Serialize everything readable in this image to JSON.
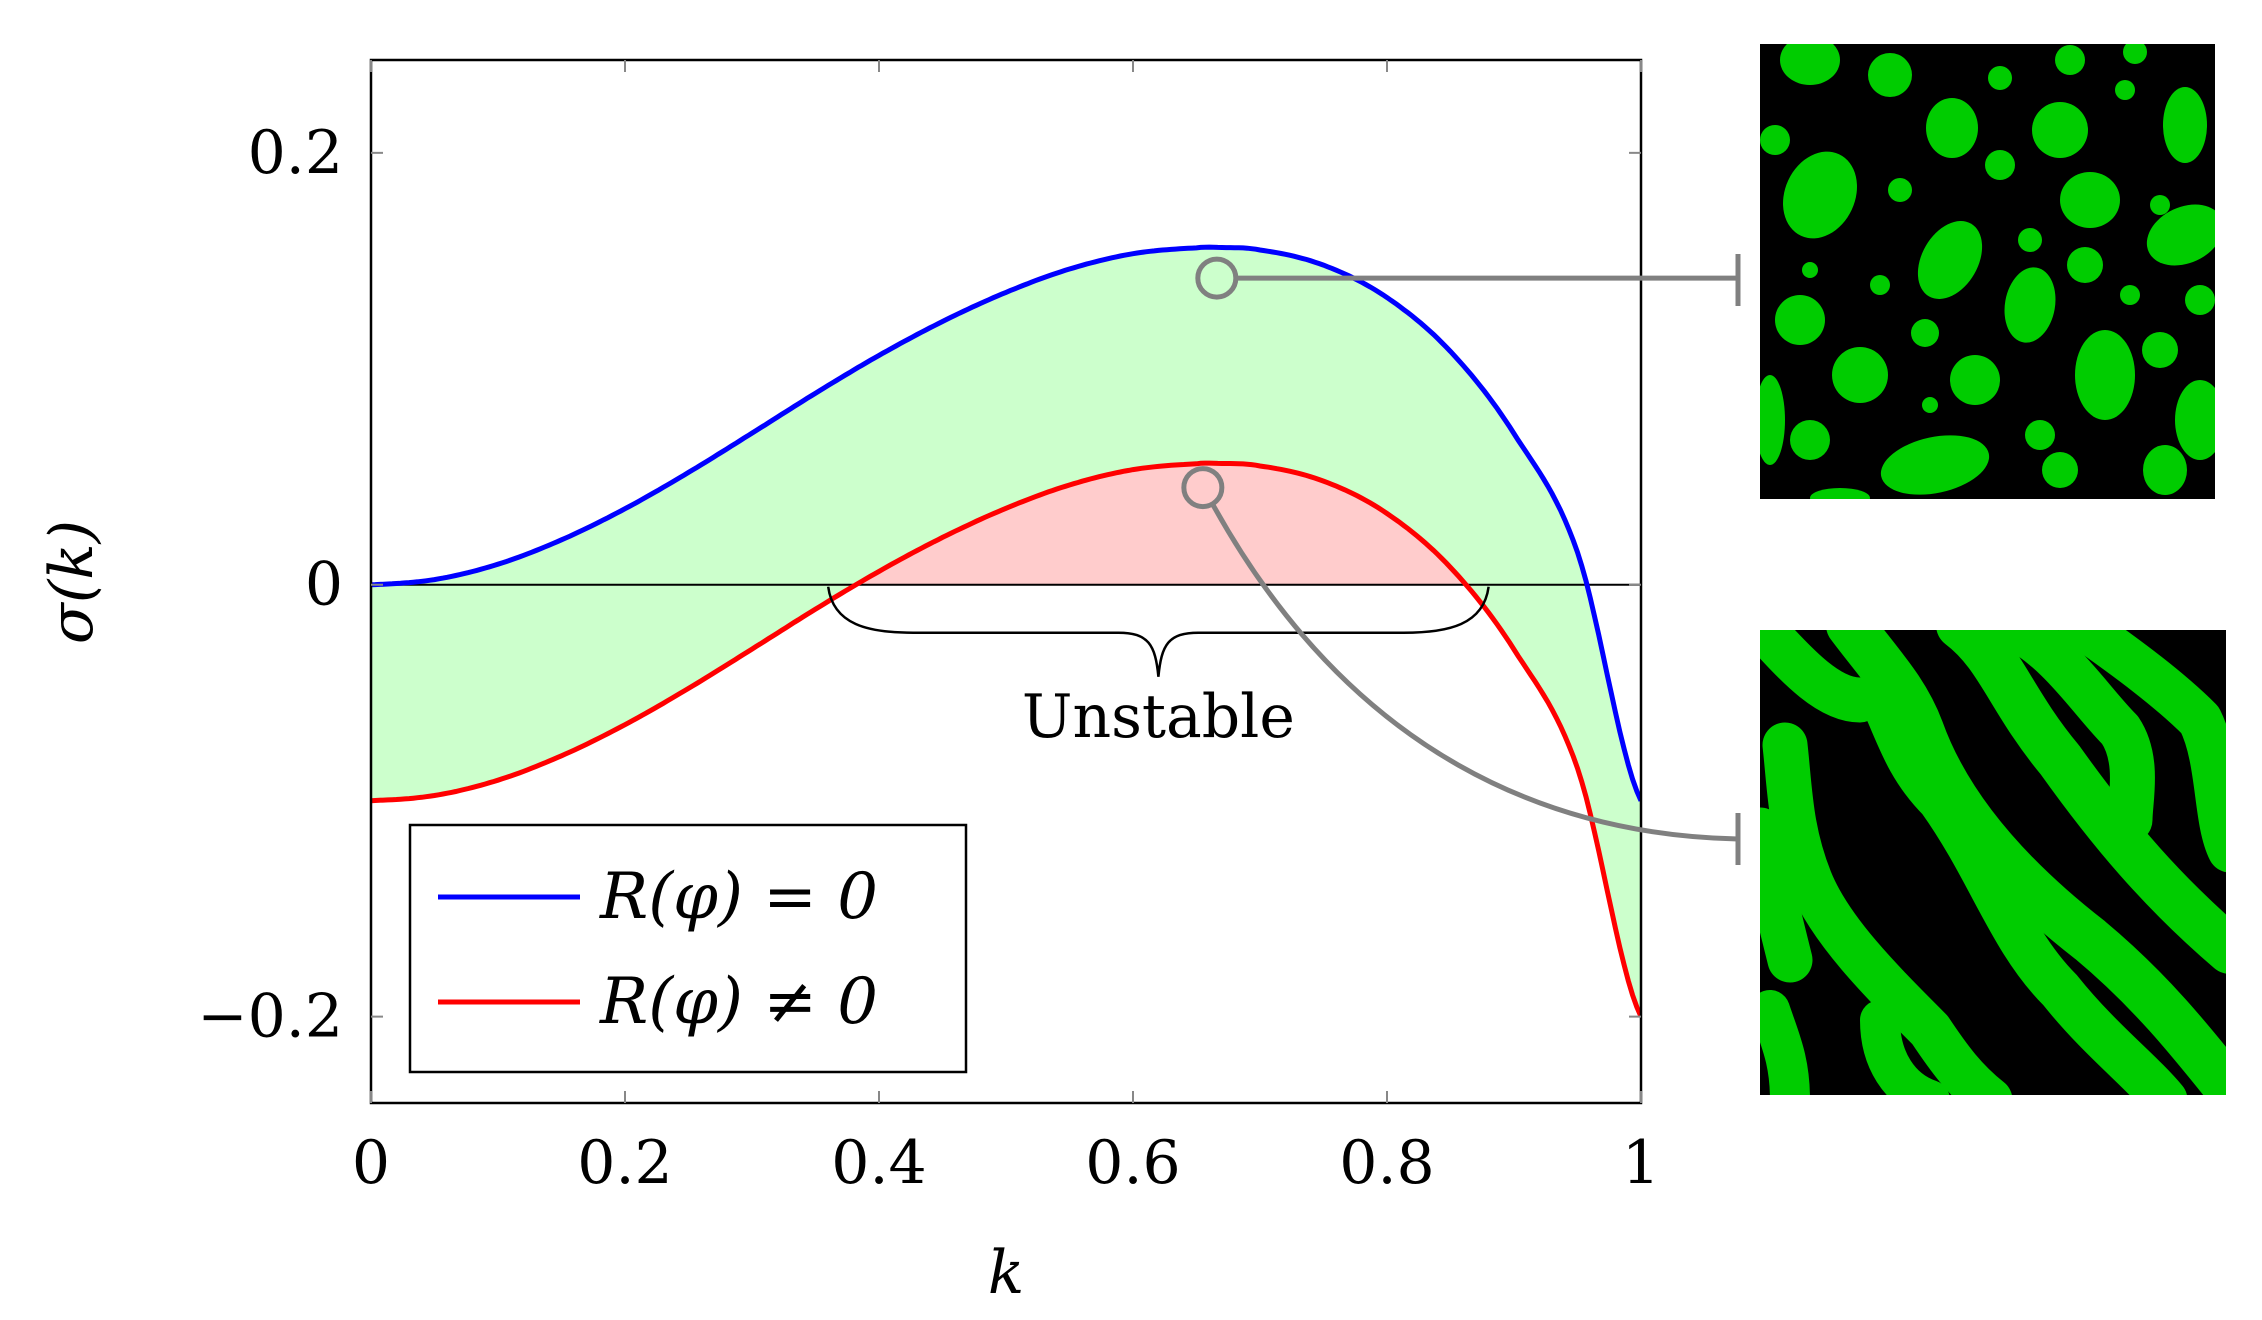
{
  "chart_data": {
    "type": "line",
    "xlabel": "k",
    "ylabel": "σ(k)",
    "xlim": [
      0,
      1
    ],
    "ylim": [
      -0.24,
      0.243
    ],
    "xticks": [
      0,
      0.2,
      0.4,
      0.6,
      0.8,
      1
    ],
    "xtick_labels": [
      "0",
      "0.2",
      "0.4",
      "0.6",
      "0.8",
      "1"
    ],
    "yticks": [
      -0.2,
      0,
      0.2
    ],
    "ytick_labels": [
      "−0.2",
      "0",
      "0.2"
    ],
    "series": [
      {
        "name": "R(φ) = 0",
        "color": "#0000ff",
        "x": [
          0,
          0.05,
          0.1,
          0.15,
          0.2,
          0.25,
          0.3,
          0.35,
          0.4,
          0.45,
          0.5,
          0.55,
          0.6,
          0.65,
          0.6667,
          0.7,
          0.75,
          0.8,
          0.85,
          0.9,
          0.95,
          1.0
        ],
        "y": [
          0,
          0.0024,
          0.0095,
          0.0208,
          0.0352,
          0.052,
          0.0702,
          0.0887,
          0.1062,
          0.1219,
          0.1354,
          0.1462,
          0.1533,
          0.156,
          0.1562,
          0.155,
          0.148,
          0.133,
          0.108,
          0.07,
          0.015,
          -0.1
        ]
      },
      {
        "name": "R(φ) ≠ 0",
        "color": "#ff0000",
        "x": [
          0,
          0.05,
          0.1,
          0.15,
          0.2,
          0.25,
          0.3,
          0.35,
          0.4,
          0.45,
          0.5,
          0.55,
          0.6,
          0.65,
          0.6667,
          0.7,
          0.75,
          0.8,
          0.85,
          0.9,
          0.95,
          1.0
        ],
        "y": [
          -0.1,
          -0.0976,
          -0.0905,
          -0.0792,
          -0.0648,
          -0.048,
          -0.0298,
          -0.0113,
          0.0062,
          0.0219,
          0.0354,
          0.0462,
          0.0533,
          0.056,
          0.0562,
          0.055,
          0.048,
          0.033,
          0.008,
          -0.03,
          -0.085,
          -0.2
        ]
      }
    ],
    "legend": {
      "position": "bottom-left",
      "entries": [
        "R(φ) = 0",
        "R(φ) ≠ 0"
      ]
    },
    "fills": {
      "between_curves_color": "#ccffcc",
      "unstable_region_color": "#ffcccc"
    },
    "annotations": {
      "unstable_label": "Unstable",
      "unstable_range": [
        0.36,
        0.88
      ],
      "marker_blue": [
        0.666,
        0.142
      ],
      "marker_red": [
        0.655,
        0.045
      ]
    },
    "insets": [
      {
        "name": "spots-pattern",
        "linked_to": "R(φ) = 0",
        "colors": [
          "#00cc00",
          "#000000"
        ]
      },
      {
        "name": "stripes-pattern",
        "linked_to": "R(φ) ≠ 0",
        "colors": [
          "#00cc00",
          "#000000"
        ]
      }
    ]
  }
}
